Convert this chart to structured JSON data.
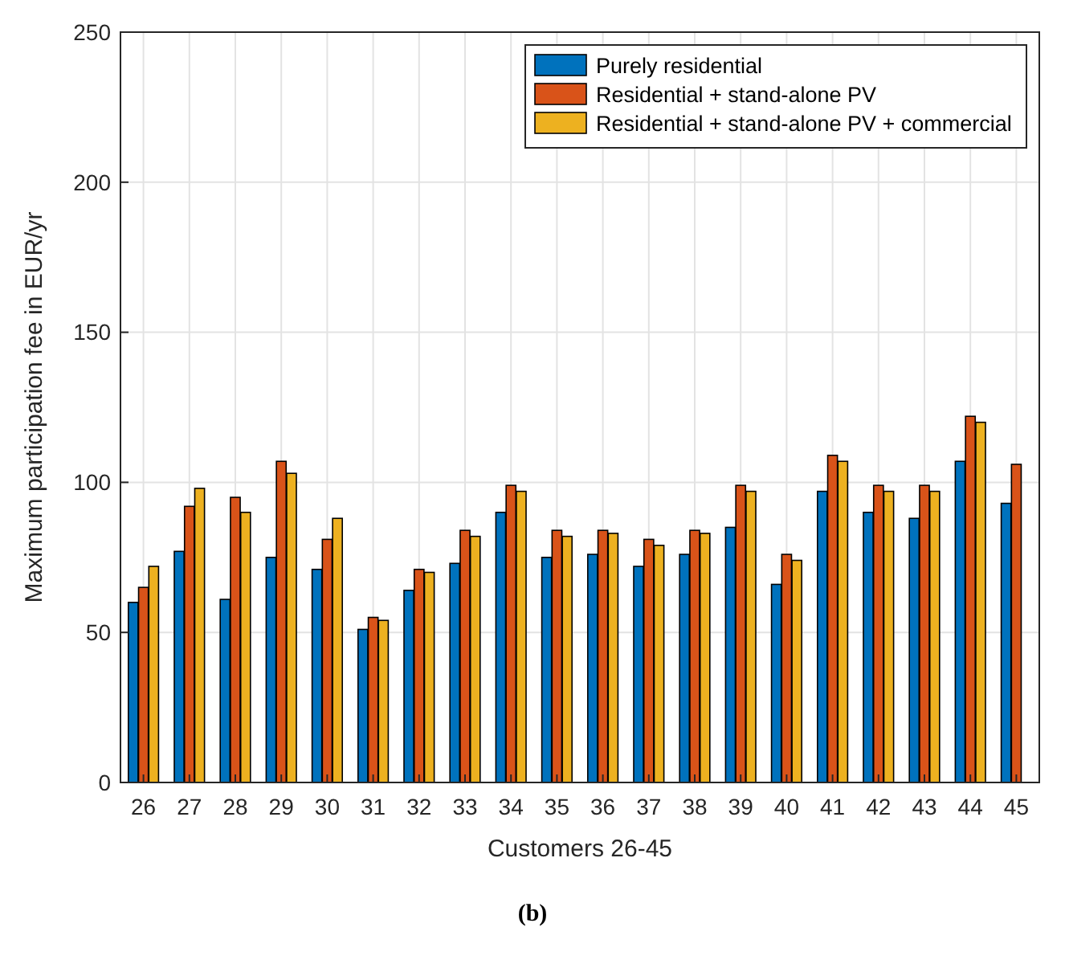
{
  "chart_data": {
    "type": "bar",
    "xlabel": "Customers 26-45",
    "ylabel": "Maximum participation fee in EUR/yr",
    "categories": [
      "26",
      "27",
      "28",
      "29",
      "30",
      "31",
      "32",
      "33",
      "34",
      "35",
      "36",
      "37",
      "38",
      "39",
      "40",
      "41",
      "42",
      "43",
      "44",
      "45"
    ],
    "series": [
      {
        "name": "Purely residential",
        "color": "#0072bd",
        "values": [
          60,
          77,
          61,
          75,
          71,
          51,
          64,
          73,
          90,
          75,
          76,
          72,
          76,
          85,
          66,
          97,
          90,
          88,
          107,
          93
        ]
      },
      {
        "name": "Residential + stand-alone PV",
        "color": "#d95319",
        "values": [
          65,
          92,
          95,
          107,
          81,
          55,
          71,
          84,
          99,
          84,
          84,
          81,
          84,
          99,
          76,
          109,
          99,
          99,
          122,
          106
        ]
      },
      {
        "name": "Residential + stand-alone PV + commercial",
        "color": "#edb120",
        "values": [
          72,
          98,
          90,
          103,
          88,
          54,
          70,
          82,
          97,
          82,
          83,
          79,
          83,
          97,
          74,
          107,
          97,
          97,
          120,
          null
        ]
      }
    ],
    "ylim": [
      0,
      250
    ],
    "yticks": [
      0,
      50,
      100,
      150,
      200,
      250
    ],
    "grid": true,
    "legend": "top right",
    "annotations": [
      "(b)"
    ]
  }
}
